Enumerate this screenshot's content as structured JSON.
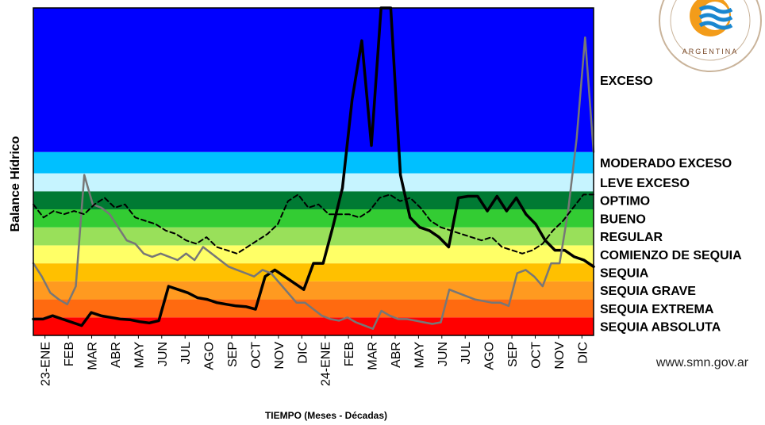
{
  "chart_data": {
    "type": "line",
    "ylabel": "Balance Hídrico",
    "xlabel": "TIEMPO (Meses - Décadas)",
    "x_ticks": [
      "23-ENE",
      "FEB",
      "MAR",
      "ABR",
      "MAY",
      "JUN",
      "JUL",
      "AGO",
      "SEP",
      "OCT",
      "NOV",
      "DIC",
      "24-ENE",
      "FEB",
      "MAR",
      "ABR",
      "MAY",
      "JUN",
      "JUL",
      "AGO",
      "SEP",
      "OCT",
      "NOV",
      "DIC"
    ],
    "ylim": [
      0,
      10
    ],
    "bands": [
      {
        "label": "SEQUIA ABSOLUTA",
        "from": 0,
        "to": 0.55,
        "color": "#ff0000"
      },
      {
        "label": "SEQUIA EXTREMA",
        "from": 0.55,
        "to": 1.1,
        "color": "#ff6a10"
      },
      {
        "label": "SEQUIA GRAVE",
        "from": 1.1,
        "to": 1.65,
        "color": "#ff9a20"
      },
      {
        "label": "SEQUIA",
        "from": 1.65,
        "to": 2.2,
        "color": "#ffc000"
      },
      {
        "label": "COMIENZO DE SEQUIA",
        "from": 2.2,
        "to": 2.75,
        "color": "#ffff66"
      },
      {
        "label": "REGULAR",
        "from": 2.75,
        "to": 3.3,
        "color": "#99e05a"
      },
      {
        "label": "BUENO",
        "from": 3.3,
        "to": 3.85,
        "color": "#33cc33"
      },
      {
        "label": "OPTIMO",
        "from": 3.85,
        "to": 4.4,
        "color": "#007a33"
      },
      {
        "label": "LEVE EXCESO",
        "from": 4.4,
        "to": 4.95,
        "color": "#c6f4ff"
      },
      {
        "label": "MODERADO EXCESO",
        "from": 4.95,
        "to": 5.6,
        "color": "#00c0ff"
      },
      {
        "label": "EXCESO",
        "from": 5.6,
        "to": 10,
        "color": "#0000ff"
      }
    ],
    "series": [
      {
        "color": "#000000",
        "style": "solid",
        "width": 3.5,
        "values": [
          0.5,
          0.5,
          0.6,
          0.5,
          0.4,
          0.3,
          0.7,
          0.6,
          0.55,
          0.5,
          0.48,
          0.42,
          0.38,
          0.45,
          1.5,
          1.4,
          1.3,
          1.15,
          1.1,
          1.0,
          0.95,
          0.9,
          0.88,
          0.8,
          1.8,
          2.0,
          1.8,
          1.6,
          1.4,
          2.2,
          2.2,
          3.3,
          4.5,
          7.2,
          9.0,
          5.8,
          11.0,
          10.8,
          4.9,
          3.6,
          3.3,
          3.2,
          3.0,
          2.7,
          4.2,
          4.25,
          4.25,
          3.8,
          4.25,
          3.8,
          4.2,
          3.7,
          3.4,
          2.9,
          2.6,
          2.6,
          2.4,
          2.3,
          2.1
        ]
      },
      {
        "color": "#777777",
        "style": "solid",
        "width": 2.5,
        "values": [
          2.2,
          1.8,
          1.3,
          1.1,
          0.95,
          1.5,
          4.9,
          4.0,
          3.9,
          3.7,
          3.3,
          2.9,
          2.8,
          2.5,
          2.4,
          2.5,
          2.4,
          2.3,
          2.5,
          2.3,
          2.7,
          2.5,
          2.3,
          2.1,
          2.0,
          1.9,
          1.8,
          2.0,
          1.9,
          1.6,
          1.3,
          1.0,
          1.0,
          0.8,
          0.6,
          0.5,
          0.45,
          0.55,
          0.4,
          0.3,
          0.2,
          0.75,
          0.6,
          0.5,
          0.5,
          0.45,
          0.4,
          0.35,
          0.4,
          1.4,
          1.3,
          1.2,
          1.1,
          1.05,
          1.0,
          1.0,
          0.9,
          1.9,
          2.0,
          1.8,
          1.5,
          2.2,
          2.2,
          3.8,
          6.0,
          9.1,
          5.6
        ]
      },
      {
        "color": "#000000",
        "style": "dashed",
        "width": 2,
        "values": [
          4.0,
          3.6,
          3.8,
          3.7,
          3.8,
          3.7,
          4.0,
          4.2,
          3.9,
          4.0,
          3.6,
          3.5,
          3.4,
          3.2,
          3.1,
          2.9,
          2.8,
          3.0,
          2.7,
          2.6,
          2.5,
          2.7,
          2.9,
          3.1,
          3.4,
          4.1,
          4.3,
          3.9,
          4.0,
          3.7,
          3.7,
          3.7,
          3.6,
          3.8,
          4.2,
          4.3,
          4.1,
          4.2,
          3.9,
          3.5,
          3.3,
          3.2,
          3.1,
          3.0,
          2.9,
          3.0,
          2.7,
          2.6,
          2.5,
          2.6,
          2.8,
          3.2,
          3.5,
          3.9,
          4.3,
          4.3
        ]
      }
    ]
  },
  "website": "www.smn.gov.ar",
  "logo": {
    "text": "ARGENTINA",
    "icon": "smn-logo-icon"
  }
}
